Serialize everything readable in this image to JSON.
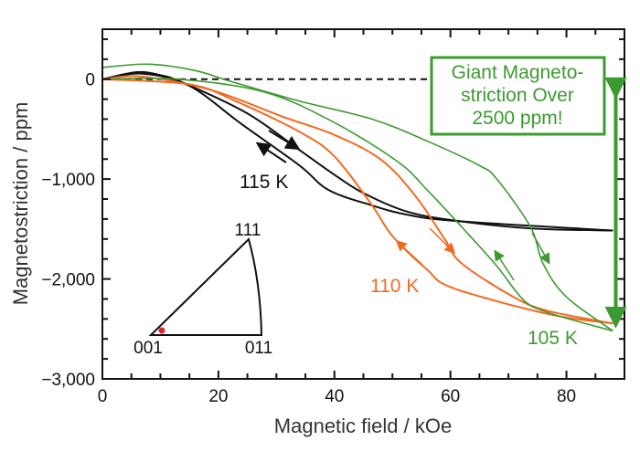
{
  "chart_data": {
    "type": "line",
    "xlabel": "Magnetic field / kOe",
    "ylabel": "Magnetostriction / ppm",
    "xlim": [
      0,
      90
    ],
    "ylim": [
      -3000,
      500
    ],
    "x_ticks": [
      0,
      20,
      40,
      60,
      80
    ],
    "y_ticks": [
      0,
      -1000,
      -2000,
      -3000
    ],
    "y_tick_labels": [
      "0",
      "−1,000",
      "−2,000",
      "−3,000"
    ],
    "x_tick_labels": [
      "0",
      "20",
      "40",
      "60",
      "80"
    ],
    "grid": false,
    "zero_line": "dashed",
    "colors": {
      "115 K": "#111111",
      "110 K": "#f26a21",
      "105 K": "#3c9a30"
    },
    "series": [
      {
        "name": "115 K",
        "branch": "increasing field",
        "points": [
          [
            0,
            0
          ],
          [
            6,
            70
          ],
          [
            10,
            40
          ],
          [
            14,
            -37
          ],
          [
            25,
            -343
          ],
          [
            34,
            -710
          ],
          [
            40,
            -957
          ],
          [
            45,
            -1140
          ],
          [
            52.5,
            -1325
          ],
          [
            61,
            -1417
          ],
          [
            74,
            -1494
          ],
          [
            88,
            -1515
          ]
        ]
      },
      {
        "name": "115 K",
        "branch": "decreasing field",
        "points": [
          [
            88,
            -1515
          ],
          [
            61,
            -1420
          ],
          [
            52.5,
            -1356
          ],
          [
            46.5,
            -1264
          ],
          [
            39,
            -1110
          ],
          [
            34,
            -865
          ],
          [
            24,
            -450
          ],
          [
            15,
            -67
          ],
          [
            7,
            55
          ],
          [
            0,
            0
          ]
        ]
      },
      {
        "name": "110 K",
        "branch": "increasing field",
        "points": [
          [
            0,
            0
          ],
          [
            7,
            25
          ],
          [
            19,
            -113
          ],
          [
            31,
            -374
          ],
          [
            40,
            -558
          ],
          [
            48,
            -804
          ],
          [
            54,
            -1172
          ],
          [
            59,
            -1600
          ],
          [
            62,
            -1847
          ],
          [
            71,
            -2184
          ],
          [
            77,
            -2322
          ],
          [
            88,
            -2445
          ]
        ]
      },
      {
        "name": "110 K",
        "branch": "decreasing field",
        "points": [
          [
            88,
            -2445
          ],
          [
            77,
            -2353
          ],
          [
            60.5,
            -2092
          ],
          [
            56,
            -1908
          ],
          [
            50,
            -1570
          ],
          [
            46.5,
            -1264
          ],
          [
            40,
            -773
          ],
          [
            34,
            -528
          ],
          [
            23,
            -220
          ],
          [
            15,
            -52
          ],
          [
            0,
            0
          ]
        ]
      },
      {
        "name": "105 K",
        "branch": "increasing field",
        "points": [
          [
            0,
            117
          ],
          [
            8,
            150
          ],
          [
            16,
            86
          ],
          [
            22,
            -20
          ],
          [
            34,
            -220
          ],
          [
            46.5,
            -400
          ],
          [
            56,
            -620
          ],
          [
            65,
            -865
          ],
          [
            68,
            -1000
          ],
          [
            73.8,
            -1480
          ],
          [
            76,
            -1850
          ],
          [
            80,
            -2180
          ],
          [
            88,
            -2520
          ]
        ]
      },
      {
        "name": "105 K",
        "branch": "decreasing field",
        "points": [
          [
            88,
            -2520
          ],
          [
            77,
            -2340
          ],
          [
            72.6,
            -2210
          ],
          [
            67.7,
            -1850
          ],
          [
            61,
            -1420
          ],
          [
            56,
            -1110
          ],
          [
            51,
            -830
          ],
          [
            40,
            -435
          ],
          [
            28,
            -130
          ],
          [
            13,
            0
          ],
          [
            0,
            0
          ]
        ]
      }
    ],
    "annotations": {
      "label_115": "115 K",
      "label_110": "110 K",
      "label_105": "105 K",
      "callout_lines": [
        "Giant Magneto-",
        "striction Over",
        "2500 ppm!"
      ],
      "double_arrow": {
        "x": 88.5,
        "from": 0,
        "to": -2550
      },
      "inset": {
        "vertices": [
          "001",
          "011",
          "111"
        ],
        "marker_color": "#e8202a"
      }
    }
  }
}
